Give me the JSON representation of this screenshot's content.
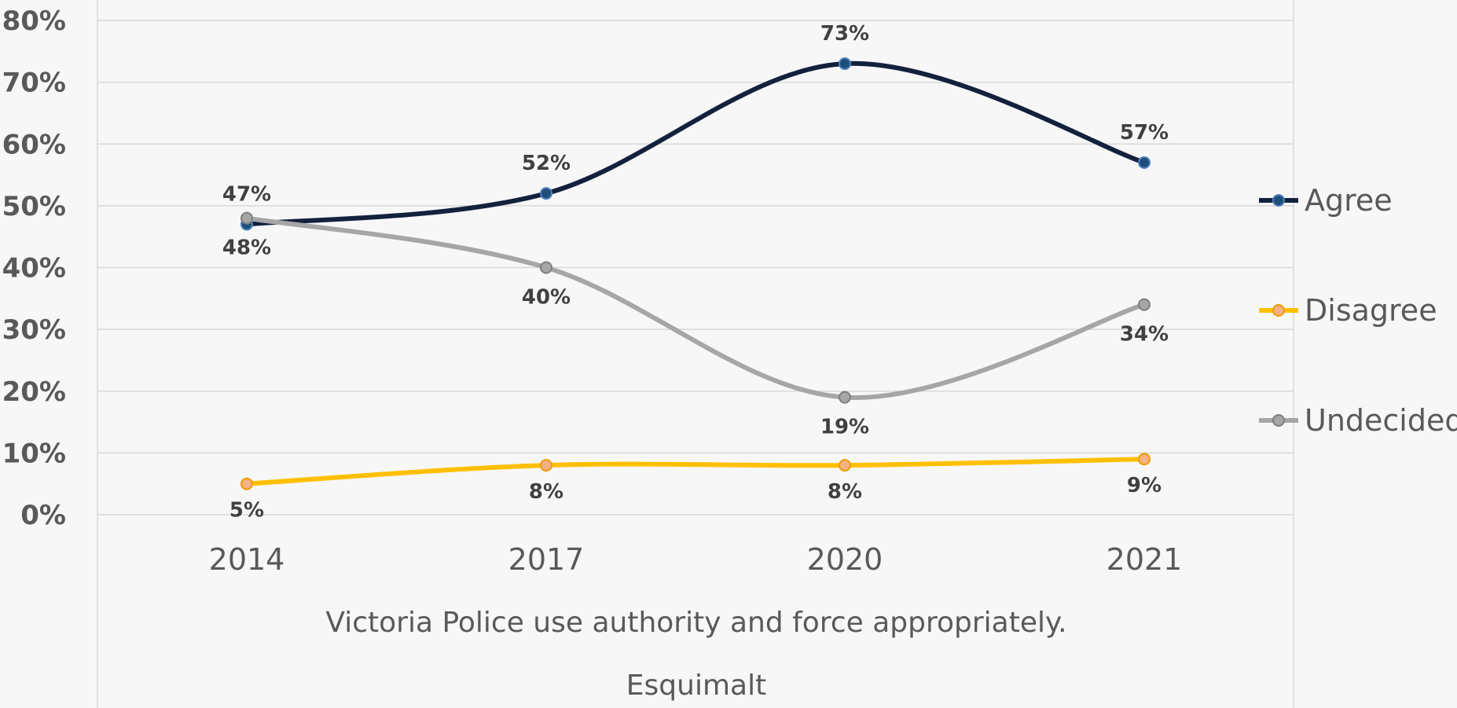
{
  "chart_data": {
    "type": "line",
    "categories": [
      "2014",
      "2017",
      "2020",
      "2021"
    ],
    "series": [
      {
        "name": "Agree",
        "values": [
          47,
          52,
          73,
          57
        ],
        "labels": [
          "47%",
          "52%",
          "73%",
          "57%"
        ],
        "color": "#14213d",
        "marker_fill": "#1f4e79"
      },
      {
        "name": "Disagree",
        "values": [
          5,
          8,
          8,
          9
        ],
        "labels": [
          "5%",
          "8%",
          "8%",
          "9%"
        ],
        "color": "#ffc000",
        "marker_fill": "#f4b183"
      },
      {
        "name": "Undecided",
        "values": [
          48,
          40,
          19,
          34
        ],
        "labels": [
          "48%",
          "40%",
          "19%",
          "34%"
        ],
        "color": "#a6a6a6",
        "marker_fill": "#a6a6a6"
      }
    ],
    "y_ticks": [
      "0%",
      "10%",
      "20%",
      "30%",
      "40%",
      "50%",
      "60%",
      "70%",
      "80%"
    ],
    "ylim": [
      0,
      80
    ],
    "grid": true,
    "legend_position": "right",
    "xlabel": "Victoria Police use authority and force appropriately.",
    "subtitle": "Esquimalt",
    "smooth": true,
    "colors": {
      "background": "#f7f7f7",
      "grid": "#d9d9d9",
      "text": "#595959",
      "label": "#404040"
    }
  }
}
